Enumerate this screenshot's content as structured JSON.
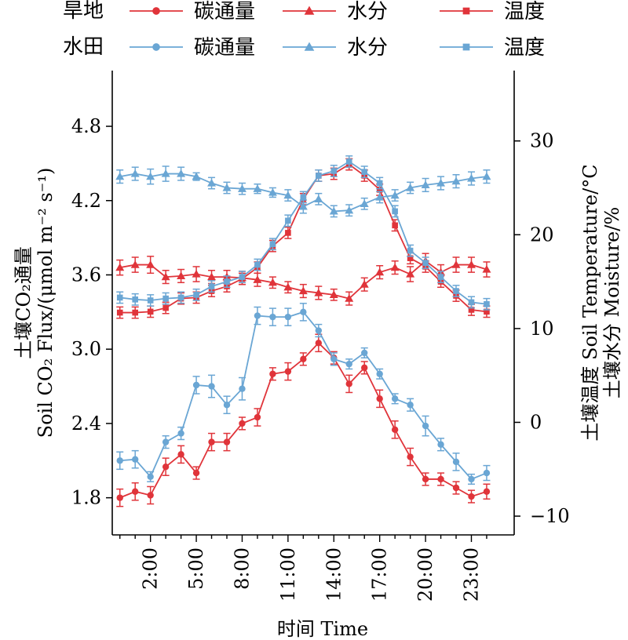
{
  "chart_data": {
    "type": "line",
    "xlabel": "时间 Time",
    "ylabel_left_cn": "土壤CO₂通量",
    "ylabel_left_en": "Soil CO₂ Flux/(μmol m⁻² s⁻¹)",
    "ylabel_right_1": "土壤温度 Soil Temperature/°C",
    "ylabel_right_2": "土壤水分 Moisture/%",
    "x_tick_labels": [
      "2:00",
      "5:00",
      "8:00",
      "11:00",
      "14:00",
      "17:00",
      "20:00",
      "23:00"
    ],
    "x_ticks": [
      2,
      5,
      8,
      11,
      14,
      17,
      20,
      23
    ],
    "xlim": [
      -0.5,
      25.8
    ],
    "ylim_left": [
      1.5,
      5.25
    ],
    "ylim_right": [
      -12,
      37.5
    ],
    "yticks_left": [
      1.8,
      2.4,
      3.0,
      3.6,
      4.2,
      4.8
    ],
    "yticks_left_labels": [
      "1.8",
      "2.4",
      "3.0",
      "3.6",
      "4.2",
      "4.8"
    ],
    "yticks_right": [
      -10,
      0,
      10,
      20,
      30
    ],
    "yticks_right_labels": [
      "−10",
      "0",
      "10",
      "20",
      "30"
    ],
    "x": [
      0,
      1,
      2,
      3,
      4,
      5,
      6,
      7,
      8,
      9,
      10,
      11,
      12,
      13,
      14,
      15,
      16,
      17,
      18,
      19,
      20,
      21,
      22,
      23,
      24
    ],
    "legend": {
      "groups": [
        {
          "label": "旱地",
          "color": "#e0343a",
          "entries": [
            "碳通量",
            "水分",
            "温度"
          ]
        },
        {
          "label": "水田",
          "color": "#6aa6d4",
          "entries": [
            "碳通量",
            "水分",
            "温度"
          ]
        }
      ]
    },
    "series": [
      {
        "group": "旱地",
        "name": "碳通量",
        "axis": "left",
        "marker": "circle",
        "color": "#e0343a",
        "values": [
          1.8,
          1.85,
          1.82,
          2.05,
          2.15,
          2.0,
          2.25,
          2.25,
          2.4,
          2.45,
          2.8,
          2.82,
          2.92,
          3.05,
          2.93,
          2.72,
          2.85,
          2.6,
          2.35,
          2.13,
          1.95,
          1.95,
          1.88,
          1.81,
          1.85
        ],
        "errors": [
          0.07,
          0.07,
          0.07,
          0.07,
          0.07,
          0.05,
          0.07,
          0.07,
          0.05,
          0.07,
          0.05,
          0.07,
          0.05,
          0.07,
          0.05,
          0.07,
          0.05,
          0.07,
          0.07,
          0.07,
          0.05,
          0.05,
          0.05,
          0.05,
          0.06
        ]
      },
      {
        "group": "旱地",
        "name": "水分",
        "axis": "right",
        "marker": "triangle",
        "color": "#e0343a",
        "values": [
          16.5,
          16.8,
          16.8,
          15.5,
          15.6,
          15.8,
          15.5,
          15.5,
          15.4,
          15.2,
          14.9,
          14.4,
          14.0,
          13.8,
          13.6,
          13.2,
          14.7,
          16.0,
          16.5,
          15.8,
          17.2,
          16.0,
          16.8,
          16.8,
          16.3
        ],
        "errors": [
          0.8,
          0.8,
          0.9,
          0.7,
          0.7,
          0.8,
          0.7,
          0.7,
          0.7,
          0.7,
          0.6,
          0.6,
          0.7,
          0.7,
          0.6,
          0.7,
          0.7,
          0.7,
          0.7,
          0.8,
          0.8,
          0.8,
          0.8,
          0.8,
          0.8
        ]
      },
      {
        "group": "旱地",
        "name": "温度",
        "axis": "right",
        "marker": "square",
        "color": "#e0343a",
        "values": [
          11.7,
          11.7,
          11.8,
          12.2,
          13.2,
          13.3,
          14.0,
          14.5,
          15.3,
          16.5,
          18.8,
          20.2,
          23.8,
          26.3,
          26.5,
          27.5,
          26.3,
          24.8,
          21.0,
          17.5,
          16.6,
          15.0,
          13.5,
          12.0,
          11.8
        ],
        "errors": [
          0.6,
          0.6,
          0.6,
          0.6,
          0.6,
          0.6,
          0.6,
          0.6,
          0.6,
          0.6,
          0.6,
          0.6,
          0.6,
          0.6,
          0.6,
          0.6,
          0.6,
          0.6,
          0.6,
          0.6,
          0.6,
          0.6,
          0.6,
          0.6,
          0.6
        ]
      },
      {
        "group": "水田",
        "name": "碳通量",
        "axis": "left",
        "marker": "circle",
        "color": "#6aa6d4",
        "values": [
          2.1,
          2.11,
          1.97,
          2.25,
          2.32,
          2.71,
          2.7,
          2.55,
          2.68,
          3.27,
          3.26,
          3.26,
          3.3,
          3.15,
          2.92,
          2.88,
          2.97,
          2.8,
          2.6,
          2.55,
          2.38,
          2.23,
          2.09,
          1.95,
          2.0
        ],
        "errors": [
          0.07,
          0.07,
          0.04,
          0.05,
          0.05,
          0.07,
          0.09,
          0.07,
          0.09,
          0.07,
          0.07,
          0.07,
          0.07,
          0.05,
          0.05,
          0.04,
          0.04,
          0.04,
          0.04,
          0.05,
          0.08,
          0.05,
          0.07,
          0.04,
          0.06
        ]
      },
      {
        "group": "水田",
        "name": "水分",
        "axis": "right",
        "marker": "triangle",
        "color": "#6aa6d4",
        "values": [
          26.2,
          26.5,
          26.2,
          26.5,
          26.5,
          26.2,
          25.5,
          25.0,
          24.9,
          24.9,
          24.5,
          24.2,
          23.0,
          23.8,
          22.5,
          22.6,
          23.3,
          24.0,
          24.2,
          25.0,
          25.3,
          25.5,
          25.7,
          26.0,
          26.2
        ],
        "errors": [
          0.7,
          0.7,
          0.8,
          0.8,
          0.7,
          0.4,
          0.6,
          0.6,
          0.6,
          0.5,
          0.5,
          0.6,
          0.7,
          0.6,
          0.6,
          0.6,
          0.6,
          0.6,
          0.6,
          0.6,
          0.7,
          0.7,
          0.7,
          0.7,
          0.7
        ]
      },
      {
        "group": "水田",
        "name": "温度",
        "axis": "right",
        "marker": "square",
        "color": "#6aa6d4",
        "values": [
          13.3,
          13.1,
          13.0,
          13.2,
          13.3,
          13.6,
          14.5,
          15.0,
          15.5,
          16.8,
          19.0,
          21.5,
          24.0,
          26.3,
          26.8,
          27.8,
          26.7,
          25.5,
          22.5,
          18.3,
          17.0,
          15.5,
          14.0,
          12.8,
          12.6
        ],
        "errors": [
          0.6,
          0.6,
          0.6,
          0.6,
          0.6,
          0.6,
          0.6,
          0.6,
          0.6,
          0.6,
          0.6,
          0.6,
          0.6,
          0.6,
          0.6,
          0.6,
          0.6,
          0.6,
          0.6,
          0.6,
          0.6,
          0.6,
          0.6,
          0.6,
          0.6
        ]
      }
    ]
  }
}
